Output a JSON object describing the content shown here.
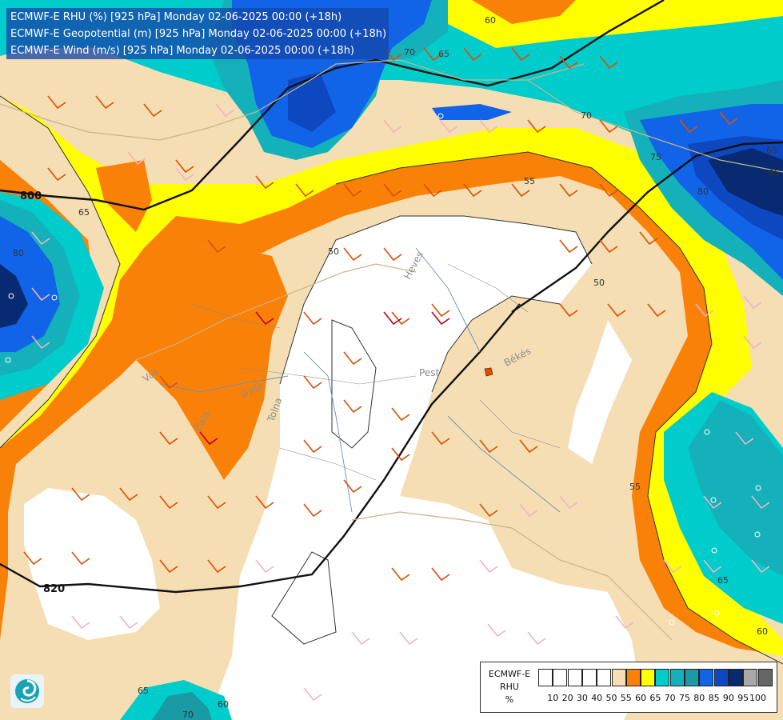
{
  "header": {
    "lines": [
      "ECMWF-E RHU (%) [925 hPa] Monday 02-06-2025 00:00 (+18h)",
      "ECMWF-E Geopotential (m) [925 hPa] Monday 02-06-2025 00:00 (+18h)",
      "ECMWF-E Wind (m/s) [925 hPa] Monday 02-06-2025 00:00 (+18h)"
    ]
  },
  "legend": {
    "title_lines": [
      "ECMWF-E",
      "RHU",
      "%"
    ],
    "ticks": [
      "10",
      "20",
      "30",
      "40",
      "50",
      "55",
      "60",
      "65",
      "70",
      "75",
      "80",
      "85",
      "90",
      "95",
      "100"
    ],
    "colors": [
      "#ffffff",
      "#ffffff",
      "#ffffff",
      "#ffffff",
      "#ffffff",
      "#f5deb3",
      "#f98108",
      "#ffff00",
      "#00cccc",
      "#14b1bb",
      "#1a9aa5",
      "#1163e8",
      "#0e48c0",
      "#072a73",
      "#a9a9a9",
      "#666666"
    ]
  },
  "rhu_colors": {
    "white": "#ffffff",
    "tan": "#f5deb3",
    "orange": "#f98108",
    "yellow": "#ffff00",
    "cyan": "#00cccc",
    "teal": "#14b1bb",
    "teal_dark": "#1a9aa5",
    "blue": "#1163e8",
    "blue_dark": "#0e48c0",
    "navy": "#072a73"
  },
  "geopotential_labels": [
    "800",
    "820"
  ],
  "rhu_contour_labels": [
    "60",
    "65",
    "65",
    "65",
    "70",
    "70",
    "75",
    "80",
    "80",
    "85",
    "50",
    "50",
    "55",
    "55",
    "65",
    "60",
    "65",
    "60",
    "70"
  ],
  "place_labels": [
    "Heves",
    "Pest",
    "Békés",
    "Vas",
    "Tolna",
    "Zala",
    "Győr"
  ],
  "logo": {
    "icon": "ecmwf-swirl-logo"
  }
}
